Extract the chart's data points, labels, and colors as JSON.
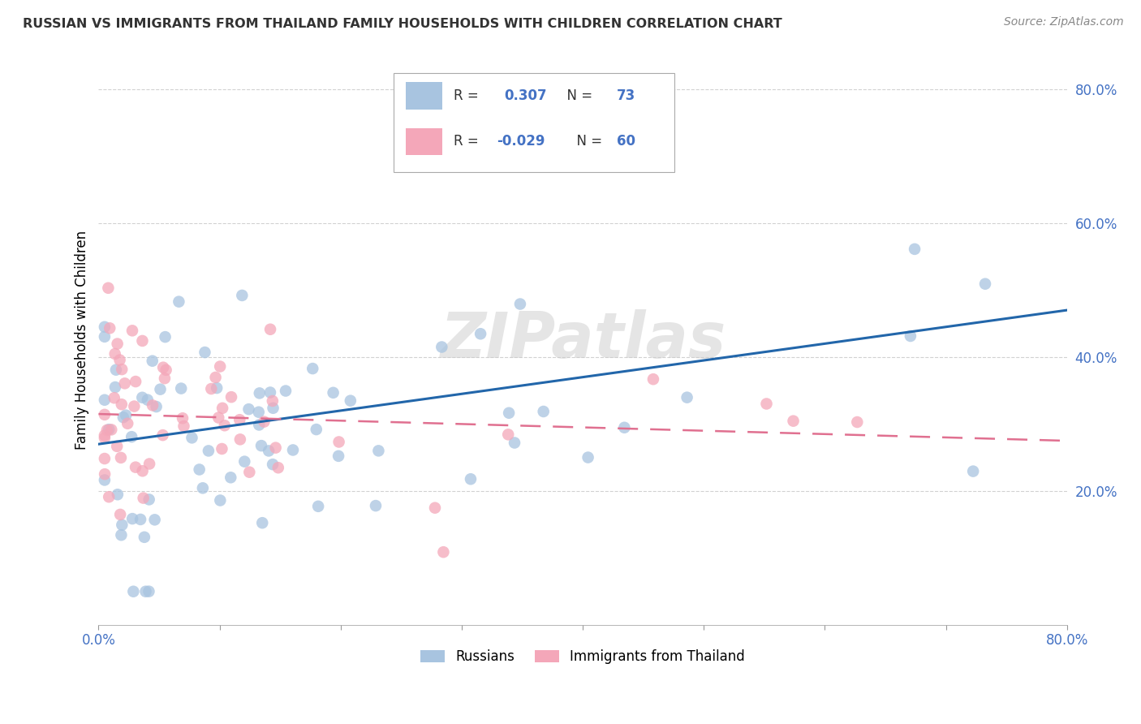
{
  "title": "RUSSIAN VS IMMIGRANTS FROM THAILAND FAMILY HOUSEHOLDS WITH CHILDREN CORRELATION CHART",
  "source": "Source: ZipAtlas.com",
  "ylabel": "Family Households with Children",
  "xlim": [
    0.0,
    0.8
  ],
  "ylim": [
    0.0,
    0.85
  ],
  "blue_color": "#a8c4e0",
  "pink_color": "#f4a7b9",
  "line_blue_color": "#2266aa",
  "line_pink_color": "#e07090",
  "watermark": "ZIPatlas",
  "title_color": "#333333",
  "tick_color": "#4472c4",
  "grid_color": "#cccccc",
  "r_blue": 0.307,
  "n_blue": 73,
  "r_pink": -0.029,
  "n_pink": 60,
  "blue_line_y0": 0.27,
  "blue_line_y1": 0.47,
  "pink_line_y0": 0.315,
  "pink_line_y1": 0.275
}
